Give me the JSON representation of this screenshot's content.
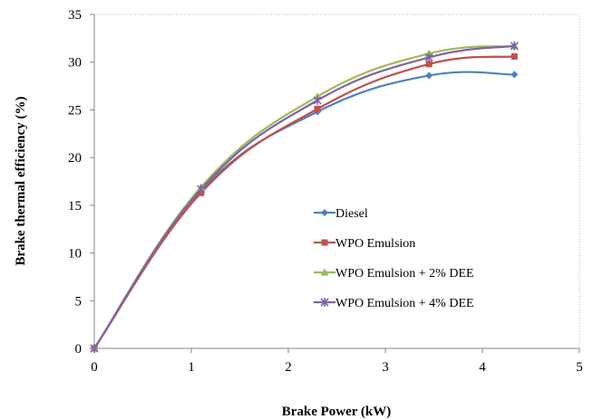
{
  "chart_data": {
    "type": "line",
    "title": "",
    "xlabel": "Brake Power (kW)",
    "ylabel": "Brake thermal efficiency (%)",
    "xlim": [
      0,
      5
    ],
    "ylim": [
      0,
      35
    ],
    "xticks": [
      "0",
      "1",
      "2",
      "3",
      "4",
      "5"
    ],
    "yticks": [
      "0",
      "5",
      "10",
      "15",
      "20",
      "25",
      "30",
      "35"
    ],
    "grid": false,
    "legend_position": "center-right",
    "series": [
      {
        "name": "Diesel",
        "color": "#4f81bd",
        "marker": "diamond",
        "x": [
          0,
          1.1,
          2.3,
          3.45,
          4.33
        ],
        "y": [
          0,
          16.5,
          24.8,
          28.6,
          28.7
        ]
      },
      {
        "name": "WPO Emulsion",
        "color": "#c0504d",
        "marker": "square",
        "x": [
          0,
          1.1,
          2.3,
          3.45,
          4.33
        ],
        "y": [
          0,
          16.3,
          25.1,
          29.8,
          30.6
        ]
      },
      {
        "name": "WPO Emulsion + 2% DEE",
        "color": "#9bbb59",
        "marker": "triangle",
        "x": [
          0,
          1.1,
          2.3,
          3.45,
          4.33
        ],
        "y": [
          0,
          16.9,
          26.4,
          30.9,
          31.7
        ]
      },
      {
        "name": "WPO Emulsion + 4% DEE",
        "color": "#8064a2",
        "marker": "star",
        "x": [
          0,
          1.1,
          2.3,
          3.45,
          4.33
        ],
        "y": [
          0,
          16.7,
          26.0,
          30.5,
          31.7
        ]
      }
    ]
  }
}
